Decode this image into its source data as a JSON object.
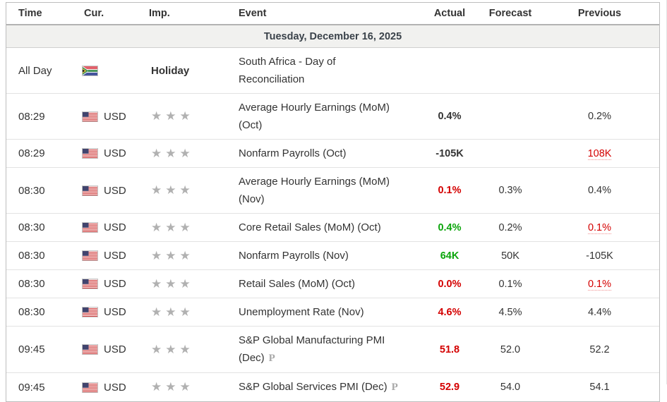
{
  "table": {
    "columns": {
      "time": "Time",
      "currency": "Cur.",
      "importance": "Imp.",
      "event": "Event",
      "actual": "Actual",
      "forecast": "Forecast",
      "previous": "Previous"
    },
    "date_header": "Tuesday, December 16, 2025",
    "rows": [
      {
        "type": "holiday",
        "time": "All Day",
        "flag": "za-flag-icon",
        "currency": "",
        "importance_label": "Holiday",
        "event": "South Africa - Day of Reconciliation",
        "marker": "",
        "actual": {
          "text": "",
          "style": "neutral"
        },
        "forecast": "",
        "previous": {
          "text": "",
          "style": "neutral"
        }
      },
      {
        "type": "event",
        "time": "08:29",
        "flag": "us-flag-icon",
        "currency": "USD",
        "stars": 3,
        "event": "Average Hourly Earnings (MoM) (Oct)",
        "marker": "",
        "actual": {
          "text": "0.4%",
          "style": "neutral"
        },
        "forecast": "",
        "previous": {
          "text": "0.2%",
          "style": "neutral"
        }
      },
      {
        "type": "event",
        "time": "08:29",
        "flag": "us-flag-icon",
        "currency": "USD",
        "stars": 3,
        "event": "Nonfarm Payrolls (Oct)",
        "marker": "",
        "actual": {
          "text": "-105K",
          "style": "neutral"
        },
        "forecast": "",
        "previous": {
          "text": "108K",
          "style": "revised"
        }
      },
      {
        "type": "event",
        "time": "08:30",
        "flag": "us-flag-icon",
        "currency": "USD",
        "stars": 3,
        "event": "Average Hourly Earnings (MoM) (Nov)",
        "marker": "",
        "actual": {
          "text": "0.1%",
          "style": "worse"
        },
        "forecast": "0.3%",
        "previous": {
          "text": "0.4%",
          "style": "neutral"
        }
      },
      {
        "type": "event",
        "time": "08:30",
        "flag": "us-flag-icon",
        "currency": "USD",
        "stars": 3,
        "event": "Core Retail Sales (MoM) (Oct)",
        "marker": "",
        "actual": {
          "text": "0.4%",
          "style": "better"
        },
        "forecast": "0.2%",
        "previous": {
          "text": "0.1%",
          "style": "revised"
        }
      },
      {
        "type": "event",
        "time": "08:30",
        "flag": "us-flag-icon",
        "currency": "USD",
        "stars": 3,
        "event": "Nonfarm Payrolls (Nov)",
        "marker": "",
        "actual": {
          "text": "64K",
          "style": "better"
        },
        "forecast": "50K",
        "previous": {
          "text": "-105K",
          "style": "neutral"
        }
      },
      {
        "type": "event",
        "time": "08:30",
        "flag": "us-flag-icon",
        "currency": "USD",
        "stars": 3,
        "event": "Retail Sales (MoM) (Oct)",
        "marker": "",
        "actual": {
          "text": "0.0%",
          "style": "worse"
        },
        "forecast": "0.1%",
        "previous": {
          "text": "0.1%",
          "style": "revised"
        }
      },
      {
        "type": "event",
        "time": "08:30",
        "flag": "us-flag-icon",
        "currency": "USD",
        "stars": 3,
        "event": "Unemployment Rate (Nov)",
        "marker": "",
        "actual": {
          "text": "4.6%",
          "style": "worse"
        },
        "forecast": "4.5%",
        "previous": {
          "text": "4.4%",
          "style": "neutral"
        }
      },
      {
        "type": "event",
        "time": "09:45",
        "flag": "us-flag-icon",
        "currency": "USD",
        "stars": 3,
        "event": "S&P Global Manufacturing PMI (Dec)",
        "marker": "P",
        "actual": {
          "text": "51.8",
          "style": "worse"
        },
        "forecast": "52.0",
        "previous": {
          "text": "52.2",
          "style": "neutral"
        }
      },
      {
        "type": "event",
        "time": "09:45",
        "flag": "us-flag-icon",
        "currency": "USD",
        "stars": 3,
        "event": "S&P Global Services PMI (Dec)",
        "marker": "P",
        "actual": {
          "text": "52.9",
          "style": "worse"
        },
        "forecast": "54.0",
        "previous": {
          "text": "54.1",
          "style": "neutral"
        }
      }
    ],
    "colors": {
      "positive_green": "#0ba50b",
      "negative_red": "#d40000",
      "text": "#333333",
      "date_row_bg": "#f1f1ef",
      "star_gray": "#b1b1b1"
    }
  }
}
